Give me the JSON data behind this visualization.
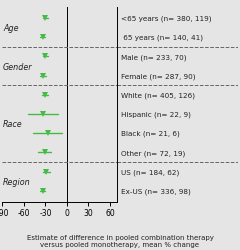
{
  "xlabel": "Estimate of difference in pooled combination therapy\nversus pooled monotherapy, mean % change",
  "xlim": [
    -90,
    70
  ],
  "xticks": [
    -90,
    -60,
    -30,
    0,
    30,
    60
  ],
  "background_color": "#e5e5e5",
  "rows": [
    {
      "label": "<65 years (n= 380, 119)",
      "group": "Age",
      "mean": -30,
      "ci_low": -34,
      "ci_high": -26
    },
    {
      "label": " 65 years (n= 140, 41)",
      "group": "Age",
      "mean": -34,
      "ci_low": -38,
      "ci_high": -30
    },
    {
      "label": "Male (n= 233, 70)",
      "group": "Gender",
      "mean": -30,
      "ci_low": -34,
      "ci_high": -26
    },
    {
      "label": "Female (n= 287, 90)",
      "group": "Gender",
      "mean": -33,
      "ci_low": -37,
      "ci_high": -29
    },
    {
      "label": "White (n= 405, 126)",
      "group": "Race",
      "mean": -31,
      "ci_low": -35,
      "ci_high": -27
    },
    {
      "label": "Hispanic (n= 22, 9)",
      "group": "Race",
      "mean": -33,
      "ci_low": -54,
      "ci_high": -12
    },
    {
      "label": "Black (n= 21, 6)",
      "group": "Race",
      "mean": -27,
      "ci_low": -47,
      "ci_high": -7
    },
    {
      "label": "Other (n= 72, 19)",
      "group": "Race",
      "mean": -31,
      "ci_low": -40,
      "ci_high": -22
    },
    {
      "label": "US (n= 184, 62)",
      "group": "Region",
      "mean": -29,
      "ci_low": -34,
      "ci_high": -24
    },
    {
      "label": "Ex-US (n= 336, 98)",
      "group": "Region",
      "mean": -34,
      "ci_low": -38,
      "ci_high": -30
    }
  ],
  "divider_after_rows": [
    1,
    3,
    7
  ],
  "groups": [
    {
      "name": "Age",
      "rows": [
        0,
        1
      ]
    },
    {
      "name": "Gender",
      "rows": [
        2,
        3
      ]
    },
    {
      "name": "Race",
      "rows": [
        4,
        5,
        6,
        7
      ]
    },
    {
      "name": "Region",
      "rows": [
        8,
        9
      ]
    }
  ],
  "marker_color": "#44bb44",
  "line_color": "#44bb44",
  "divider_color": "#666666",
  "text_color": "#222222",
  "label_fontsize": 5.2,
  "group_fontsize": 5.8,
  "xlabel_fontsize": 5.0,
  "tick_fontsize": 5.5
}
